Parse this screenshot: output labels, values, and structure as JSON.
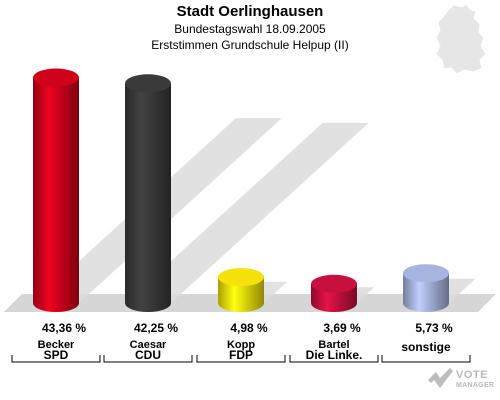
{
  "header": {
    "title": "Stadt Oerlinghausen",
    "subtitle1": "Bundestagswahl 18.09.2005",
    "subtitle2": "Erststimmen Grundschule Helpup (II)"
  },
  "logo": {
    "line1": "VOTE",
    "line2": "MANAGER"
  },
  "chart_data": {
    "type": "bar",
    "categories": [
      "SPD",
      "CDU",
      "FDP",
      "Die Linke.",
      "sonstige"
    ],
    "candidates": [
      "Becker",
      "Caesar",
      "Kopp",
      "Bartel",
      ""
    ],
    "values": [
      43.36,
      42.25,
      4.98,
      3.69,
      5.73
    ],
    "value_labels": [
      "43,36 %",
      "42,25 %",
      "4,98 %",
      "3,69 %",
      "5,73 %"
    ],
    "colors": [
      "#d0021b",
      "#3a3a3a",
      "#f5e20a",
      "#c8103e",
      "#a8b4e0"
    ],
    "ylim": [
      0,
      45
    ]
  }
}
